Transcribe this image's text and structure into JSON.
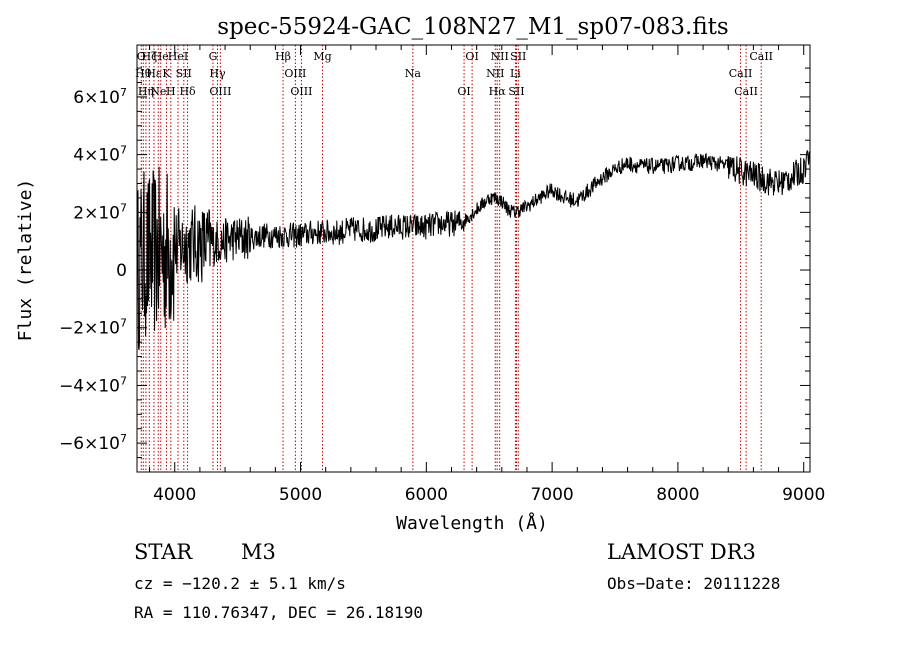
{
  "chart_data": {
    "type": "line",
    "title": "spec-55924-GAC_108N27_M1_sp07-083.fits",
    "xlabel": "Wavelength (Å)",
    "ylabel": "Flux (relative)",
    "xlim": [
      3700,
      9050
    ],
    "ylim": [
      -70000000,
      78000000
    ],
    "x_ticks": [
      {
        "value": 4000,
        "label": "4000"
      },
      {
        "value": 5000,
        "label": "5000"
      },
      {
        "value": 6000,
        "label": "6000"
      },
      {
        "value": 7000,
        "label": "7000"
      },
      {
        "value": 8000,
        "label": "8000"
      },
      {
        "value": 9000,
        "label": "9000"
      }
    ],
    "y_ticks": [
      {
        "value": -60000000,
        "base": "−6×10",
        "exp": "7"
      },
      {
        "value": -40000000,
        "base": "−4×10",
        "exp": "7"
      },
      {
        "value": -20000000,
        "base": "−2×10",
        "exp": "7"
      },
      {
        "value": 0,
        "base": "0",
        "exp": ""
      },
      {
        "value": 20000000,
        "base": "2×10",
        "exp": "7"
      },
      {
        "value": 40000000,
        "base": "4×10",
        "exp": "7"
      },
      {
        "value": 60000000,
        "base": "6×10",
        "exp": "7"
      }
    ],
    "series": [
      {
        "x": [
          3700,
          3750,
          3800,
          3850,
          3900,
          3950,
          4000,
          4050,
          4100,
          4150,
          4200,
          4250,
          4300,
          4350,
          4400,
          4450,
          4500,
          4600,
          4700,
          4800,
          4900,
          5000,
          5100,
          5200,
          5300,
          5400,
          5500,
          5600,
          5700,
          5800,
          5900,
          6000,
          6100,
          6200,
          6300,
          6400,
          6500,
          6550,
          6600,
          6650,
          6700,
          6750,
          6800,
          6900,
          7000,
          7100,
          7200,
          7300,
          7400,
          7500,
          7600,
          7700,
          7800,
          7900,
          8000,
          8100,
          8200,
          8300,
          8400,
          8500,
          8600,
          8700,
          8800,
          8900,
          9000,
          9050
        ],
        "y": [
          0,
          5000000,
          5000000,
          6000000,
          6000000,
          7000000,
          8000000,
          8000000,
          9000000,
          9000000,
          9000000,
          9000000,
          9000000,
          10000000,
          10000000,
          11000000,
          11000000,
          11000000,
          12000000,
          12000000,
          12000000,
          12000000,
          13000000,
          13000000,
          13000000,
          14000000,
          14000000,
          14000000,
          15000000,
          15000000,
          15000000,
          15000000,
          16000000,
          16000000,
          17000000,
          21000000,
          25000000,
          25000000,
          24000000,
          21000000,
          20000000,
          21000000,
          22000000,
          25000000,
          28000000,
          25000000,
          24000000,
          28000000,
          32000000,
          35000000,
          37000000,
          36000000,
          36000000,
          36000000,
          37000000,
          37000000,
          38000000,
          37000000,
          36000000,
          34000000,
          33000000,
          31000000,
          30000000,
          32000000,
          35000000,
          42000000
        ]
      }
    ],
    "lines": [
      {
        "x": 3734,
        "label": "O"
      },
      {
        "x": 3750,
        "label": "Hθ"
      },
      {
        "x": 3771,
        "label": "Hη"
      },
      {
        "x": 3798,
        "label": "Hζ"
      },
      {
        "x": 3835,
        "label": "Hε"
      },
      {
        "x": 3869,
        "label": "Ne"
      },
      {
        "x": 3889,
        "label": "He"
      },
      {
        "x": 3934,
        "label": "K"
      },
      {
        "x": 3969,
        "label": "H"
      },
      {
        "x": 4026,
        "label": "HeI"
      },
      {
        "x": 4072,
        "label": "SII"
      },
      {
        "x": 4102,
        "label": "Hδ"
      },
      {
        "x": 4304,
        "label": "G"
      },
      {
        "x": 4340,
        "label": "Hγ"
      },
      {
        "x": 4363,
        "label": "OIII"
      },
      {
        "x": 4861,
        "label": "Hβ"
      },
      {
        "x": 4959,
        "label": "OIII"
      },
      {
        "x": 5007,
        "label": "OIII"
      },
      {
        "x": 5175,
        "label": "Mg"
      },
      {
        "x": 5893,
        "label": "Na"
      },
      {
        "x": 6300,
        "label": "OI"
      },
      {
        "x": 6364,
        "label": "OI"
      },
      {
        "x": 6548,
        "label": "NII"
      },
      {
        "x": 6563,
        "label": "Hα"
      },
      {
        "x": 6583,
        "label": "NII"
      },
      {
        "x": 6708,
        "label": "Li"
      },
      {
        "x": 6717,
        "label": "SII"
      },
      {
        "x": 6731,
        "label": "SII"
      },
      {
        "x": 8498,
        "label": "CaII"
      },
      {
        "x": 8542,
        "label": "CaII"
      },
      {
        "x": 8662,
        "label": "CaII"
      }
    ],
    "line_color": "#c00000",
    "spectrum_color": "#000000",
    "grid": false,
    "legend": "none"
  },
  "info": {
    "class_label": "STAR",
    "subclass": "M3",
    "survey": "LAMOST DR3",
    "cz": "cz = −120.2 ± 5.1 km/s",
    "obs_date": "Obs−Date: 20111228",
    "radec": "RA = 110.76347, DEC =  26.18190"
  }
}
